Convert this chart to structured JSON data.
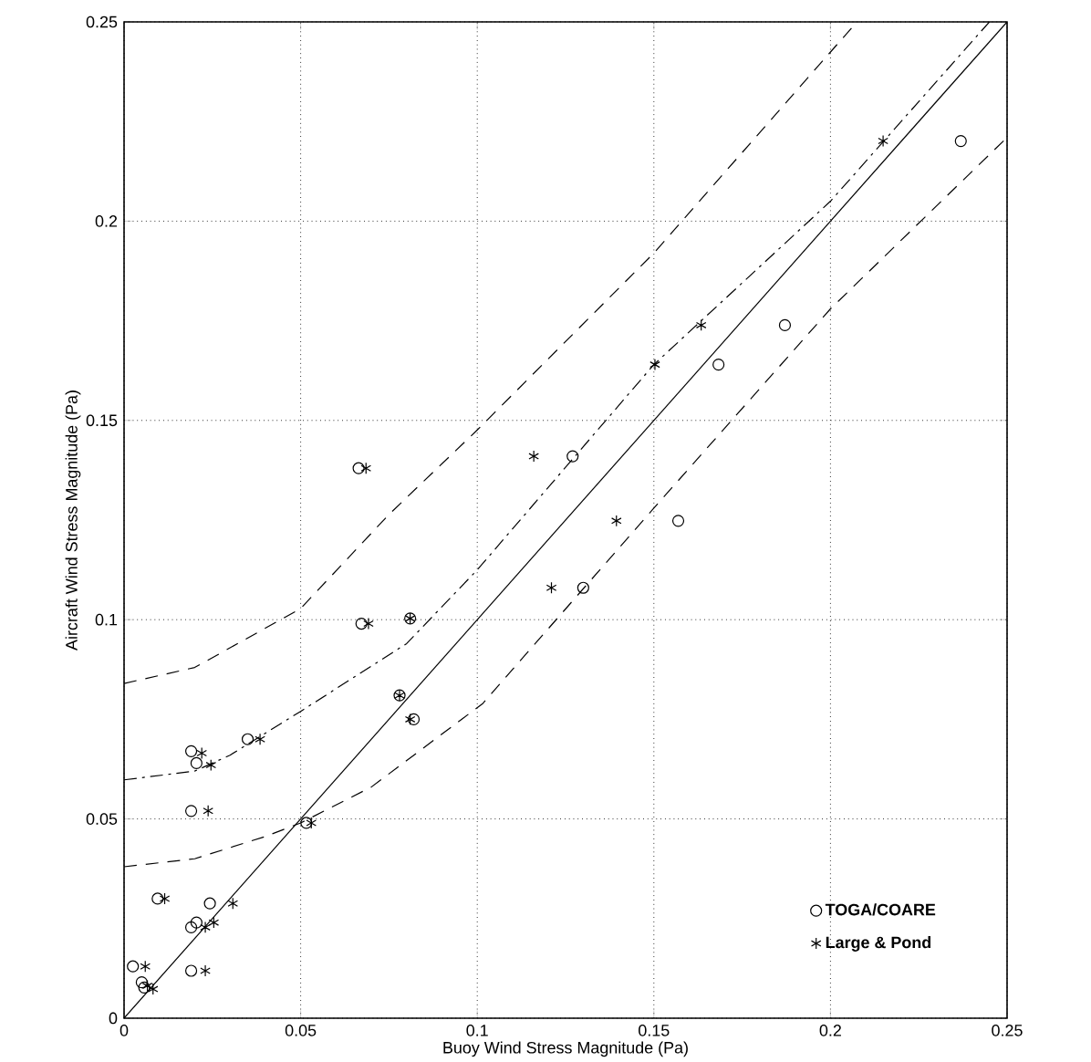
{
  "chart_data": {
    "type": "scatter",
    "xlabel": "Buoy Wind Stress Magnitude (Pa)",
    "ylabel": "Aircraft Wind Stress Magnitude (Pa)",
    "xlim": [
      0,
      0.25
    ],
    "ylim": [
      0,
      0.25
    ],
    "xticks": [
      0,
      0.05,
      0.1,
      0.15,
      0.2,
      0.25
    ],
    "yticks": [
      0,
      0.05,
      0.1,
      0.15,
      0.2,
      0.25
    ],
    "grid": true,
    "legend": "bottom right",
    "series": [
      {
        "name": "TOGA/COARE",
        "color": "#000000",
        "marker": "circle",
        "x": [
          0.0025,
          0.005,
          0.0057,
          0.019,
          0.0205,
          0.019,
          0.035,
          0.0516,
          0.0095,
          0.019,
          0.0205,
          0.0243,
          0.019,
          0.082,
          0.078,
          0.0664,
          0.0672,
          0.081,
          0.1569,
          0.127,
          0.13,
          0.1683,
          0.1871,
          0.2369
        ],
        "values": [
          0.013,
          0.009,
          0.0077,
          0.067,
          0.064,
          0.052,
          0.07,
          0.049,
          0.03,
          0.0228,
          0.024,
          0.0288,
          0.0119,
          0.075,
          0.081,
          0.138,
          0.099,
          0.1003,
          0.1248,
          0.141,
          0.108,
          0.164,
          0.1739,
          0.2201
        ]
      },
      {
        "name": "Large & Pond",
        "color": "#000000",
        "marker": "cross",
        "x": [
          0.006,
          0.0082,
          0.0066,
          0.022,
          0.0246,
          0.0238,
          0.0385,
          0.053,
          0.0115,
          0.0254,
          0.023,
          0.0308,
          0.023,
          0.081,
          0.078,
          0.0685,
          0.0692,
          0.081,
          0.1394,
          0.116,
          0.121,
          0.1503,
          0.1634,
          0.2149
        ],
        "values": [
          0.013,
          0.0073,
          0.0081,
          0.0665,
          0.0635,
          0.052,
          0.07,
          0.049,
          0.03,
          0.024,
          0.0228,
          0.0288,
          0.0119,
          0.075,
          0.081,
          0.138,
          0.099,
          0.1003,
          0.1248,
          0.141,
          0.108,
          0.164,
          0.1739,
          0.2201
        ]
      },
      {
        "type": "line",
        "color": "#000000",
        "marker": "none",
        "line_style": "solid",
        "x": [
          0,
          0.25
        ],
        "values": [
          0,
          0.25
        ]
      },
      {
        "type": "line",
        "color": "#000000",
        "marker": "none",
        "line_style": "dashdot",
        "x": [
          0,
          0.02,
          0.03,
          0.05,
          0.08,
          0.1,
          0.15,
          0.2,
          0.245
        ],
        "values": [
          0.0598,
          0.062,
          0.066,
          0.077,
          0.094,
          0.1125,
          0.164,
          0.205,
          0.25
        ]
      },
      {
        "type": "line",
        "color": "#000000",
        "marker": "none",
        "line_style": "dashed",
        "x": [
          0,
          0.02,
          0.05,
          0.075,
          0.1,
          0.15,
          0.2075
        ],
        "values": [
          0.084,
          0.088,
          0.1028,
          0.1264,
          0.1476,
          0.192,
          0.25
        ]
      },
      {
        "type": "line",
        "color": "#000000",
        "marker": "none",
        "line_style": "dashed",
        "x": [
          0,
          0.02,
          0.04,
          0.05,
          0.07,
          0.1016,
          0.15,
          0.2,
          0.25
        ],
        "values": [
          0.038,
          0.04,
          0.0456,
          0.049,
          0.058,
          0.079,
          0.128,
          0.178,
          0.221
        ]
      }
    ]
  }
}
